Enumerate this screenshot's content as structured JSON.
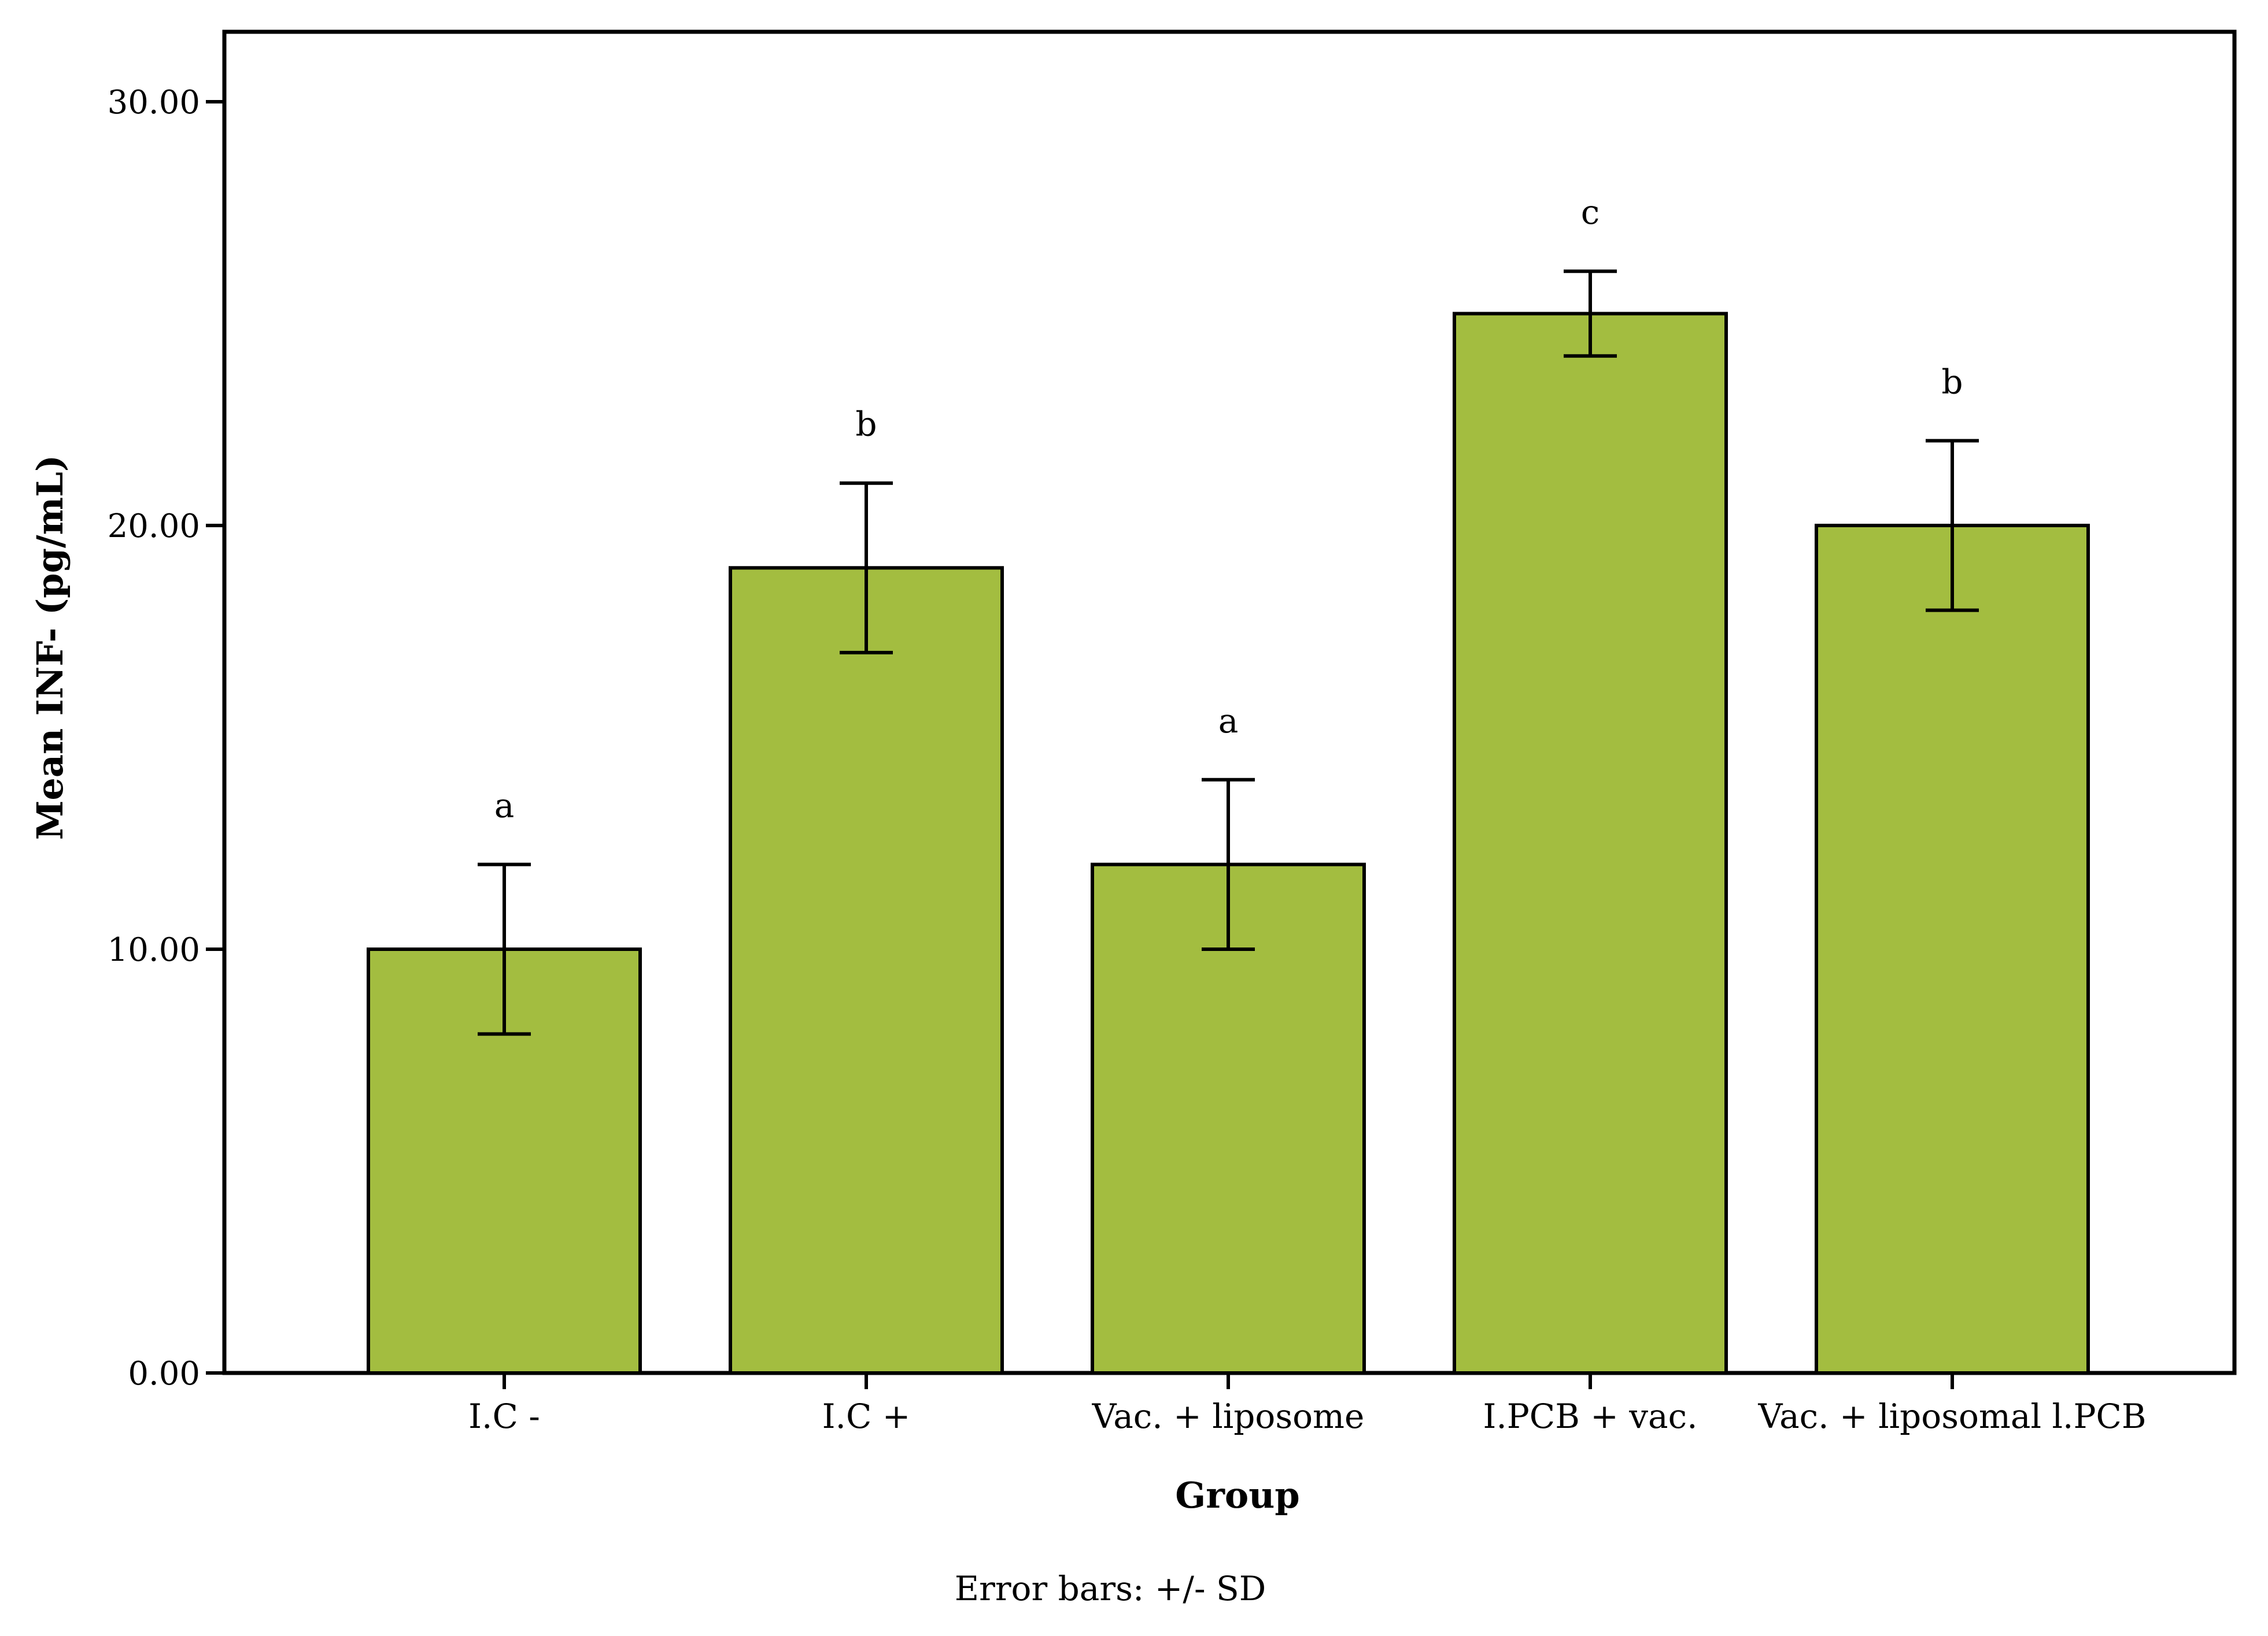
{
  "chart_data": {
    "type": "bar",
    "categories": [
      "I.C -",
      "I.C +",
      "Vac. + liposome",
      "I.PCB + vac.",
      "Vac. + liposomal l.PCB"
    ],
    "values": [
      10,
      19,
      12,
      25,
      20
    ],
    "error_sd": [
      2,
      2,
      2,
      1,
      2
    ],
    "significance": [
      "a",
      "b",
      "a",
      "c",
      "b"
    ],
    "yticks": [
      "0.00",
      "10.00",
      "20.00",
      "30.00"
    ],
    "ytick_values": [
      0,
      10,
      20,
      30
    ],
    "ylim": [
      0,
      30
    ],
    "xlabel": "Group",
    "ylabel": "Mean INF- (pg/mL)",
    "footnote": "Error bars: +/- SD",
    "bar_color": "#a3bd40",
    "grid": false
  }
}
